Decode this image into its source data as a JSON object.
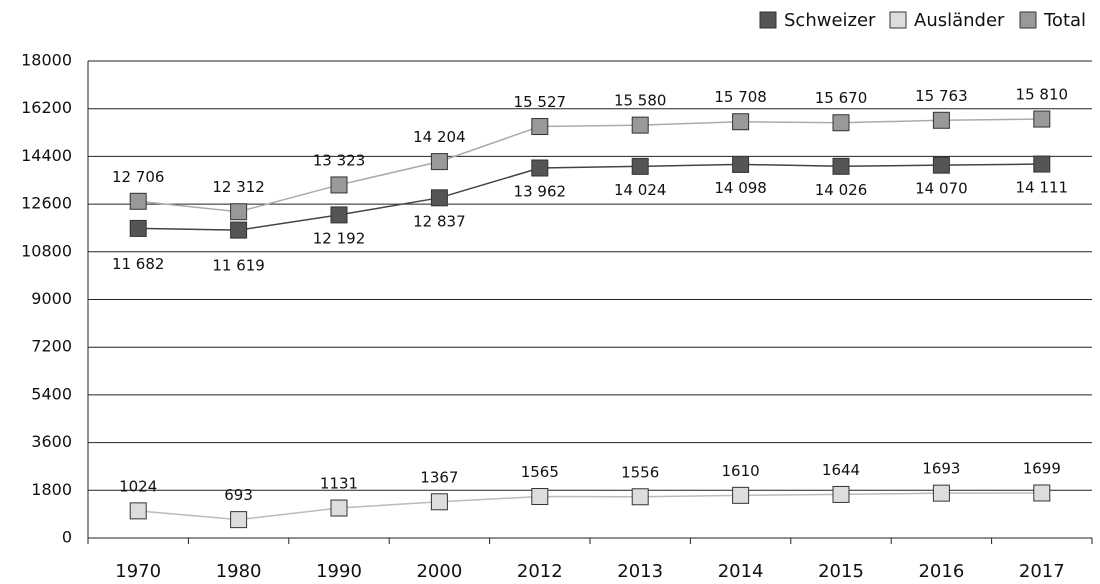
{
  "chart_data": {
    "type": "line",
    "categories": [
      "1970",
      "1980",
      "1990",
      "2000",
      "2012",
      "2013",
      "2014",
      "2015",
      "2016",
      "2017"
    ],
    "series": [
      {
        "name": "Schweizer",
        "color": "#555555",
        "line_color": "#444444",
        "values": [
          11682,
          11619,
          12192,
          12837,
          13962,
          14024,
          14098,
          14026,
          14070,
          14111
        ],
        "value_labels": [
          "11 682",
          "11 619",
          "12 192",
          "12 837",
          "13 962",
          "14 024",
          "14 098",
          "14 026",
          "14 070",
          "14 111"
        ]
      },
      {
        "name": "Ausländer",
        "color": "#dddddd",
        "line_color": "#bbbbbb",
        "values": [
          1024,
          693,
          1131,
          1367,
          1565,
          1556,
          1610,
          1644,
          1693,
          1699
        ],
        "value_labels": [
          "1024",
          "693",
          "1131",
          "1367",
          "1565",
          "1556",
          "1610",
          "1644",
          "1693",
          "1699"
        ]
      },
      {
        "name": "Total",
        "color": "#999999",
        "line_color": "#aaaaaa",
        "values": [
          12706,
          12312,
          13323,
          14204,
          15527,
          15580,
          15708,
          15670,
          15763,
          15810
        ],
        "value_labels": [
          "12 706",
          "12 312",
          "13 323",
          "14 204",
          "15 527",
          "15 580",
          "15 708",
          "15 670",
          "15 763",
          "15 810"
        ]
      }
    ],
    "ylim": [
      0,
      18000
    ],
    "yticks": [
      0,
      1800,
      3600,
      5400,
      7200,
      9000,
      10800,
      12600,
      14400,
      16200,
      18000
    ],
    "grid": true,
    "legend": "top-right"
  }
}
